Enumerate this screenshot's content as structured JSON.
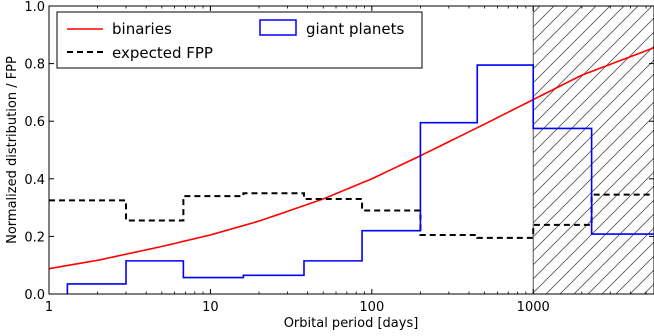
{
  "chart_data": {
    "type": "line",
    "title": "",
    "xlabel": "Orbital period [days]",
    "ylabel": "Normalized distribution / FPP",
    "xscale": "log",
    "xlim": [
      1,
      5600
    ],
    "ylim": [
      0,
      1
    ],
    "x_ticks": [
      1,
      10,
      100,
      1000
    ],
    "x_tick_labels": [
      "1",
      "10",
      "100",
      "1000"
    ],
    "y_ticks": [
      0,
      0.2,
      0.4,
      0.6,
      0.8,
      1.0
    ],
    "y_tick_labels": [
      "0.0",
      "0.2",
      "0.4",
      "0.6",
      "0.8",
      "1.0"
    ],
    "legend_position": "top-left",
    "shaded_region": {
      "x_start": 1000,
      "x_end": 5600,
      "pattern": "hatched"
    },
    "colors": {
      "binaries": "#ff0000",
      "expected_fpp": "#000000",
      "giant_planets": "#0000ff"
    },
    "legend": [
      {
        "label": "binaries",
        "series": "binaries"
      },
      {
        "label": "expected FPP",
        "series": "expected_fpp"
      },
      {
        "label": "giant planets",
        "series": "giant_planets"
      }
    ],
    "series": [
      {
        "id": "binaries",
        "name": "binaries",
        "style": "line",
        "x": [
          1,
          2,
          5,
          10,
          20,
          50,
          100,
          200,
          500,
          1000,
          2000,
          5600
        ],
        "y": [
          0.088,
          0.117,
          0.165,
          0.205,
          0.253,
          0.33,
          0.4,
          0.48,
          0.59,
          0.675,
          0.76,
          0.855
        ]
      },
      {
        "id": "expected_fpp",
        "name": "expected FPP",
        "style": "dashed-step",
        "bin_edges": [
          1,
          3,
          6.8,
          16,
          38,
          87,
          200,
          450,
          1000,
          2300,
          5600
        ],
        "values": [
          0.325,
          0.255,
          0.34,
          0.35,
          0.33,
          0.29,
          0.205,
          0.195,
          0.24,
          0.345
        ]
      },
      {
        "id": "giant_planets",
        "name": "giant planets",
        "style": "histogram",
        "bin_edges": [
          1.3,
          3,
          6.8,
          16,
          38,
          87,
          200,
          450,
          1000,
          2300,
          5600
        ],
        "values": [
          0.035,
          0.115,
          0.057,
          0.065,
          0.115,
          0.22,
          0.595,
          0.795,
          0.575,
          0.208
        ]
      }
    ]
  }
}
